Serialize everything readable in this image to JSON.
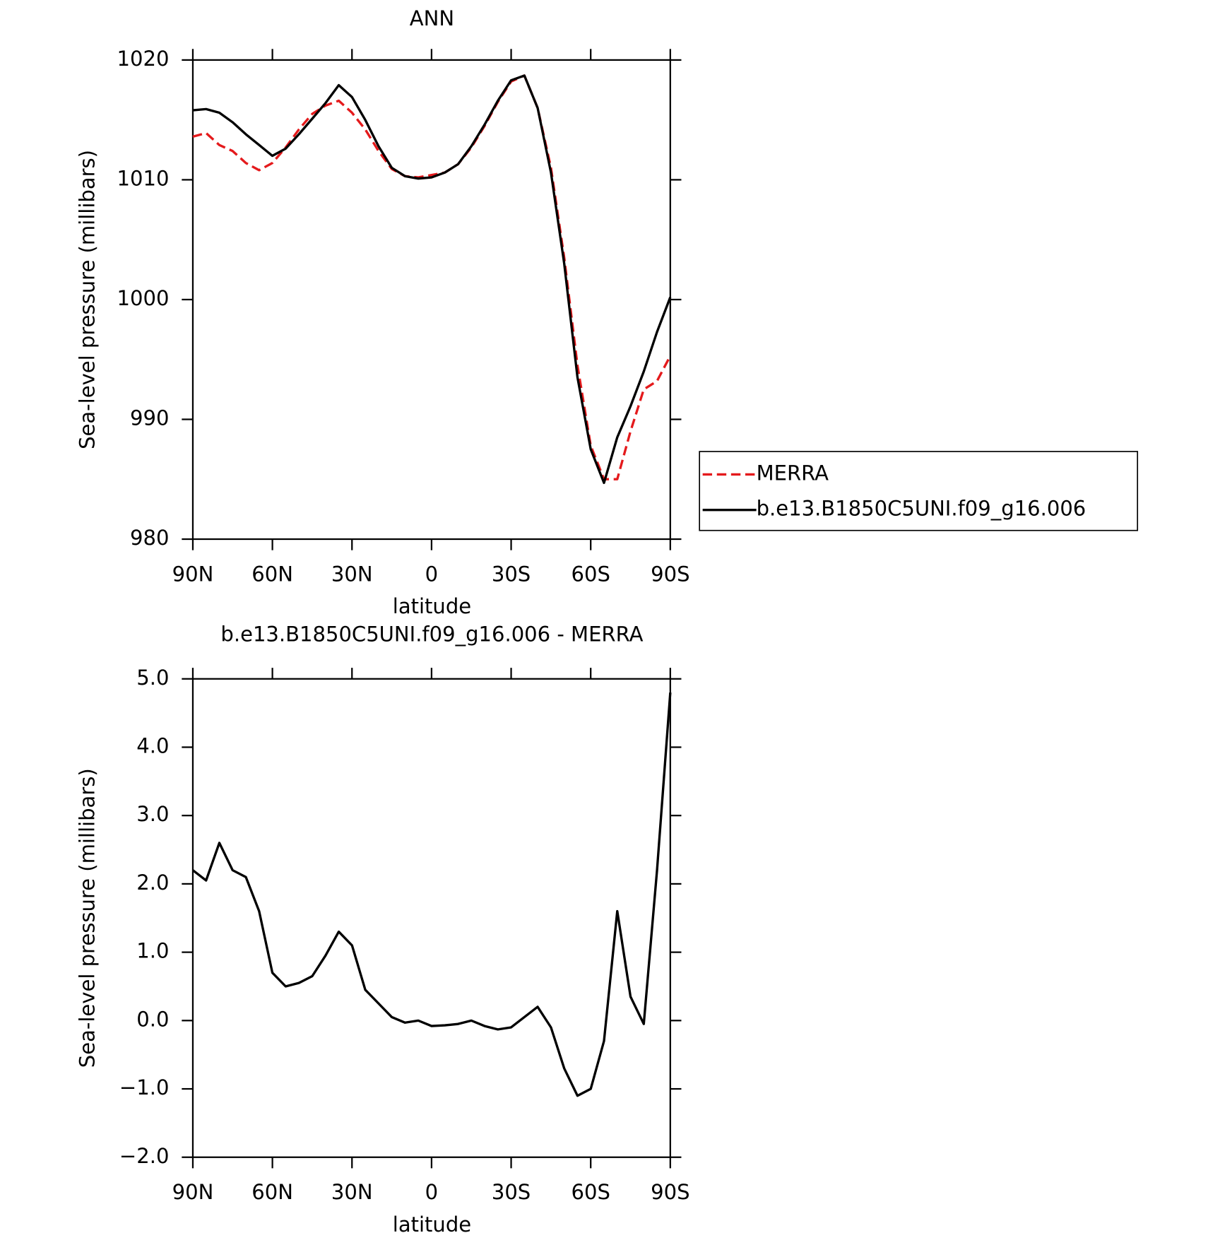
{
  "chart_data": [
    {
      "type": "line",
      "title": "ANN",
      "xlabel": "latitude",
      "ylabel": "Sea-level pressure (millibars)",
      "x": [
        90,
        85,
        80,
        75,
        70,
        65,
        60,
        55,
        50,
        45,
        40,
        35,
        30,
        25,
        20,
        15,
        10,
        5,
        0,
        -5,
        -10,
        -15,
        -20,
        -25,
        -30,
        -35,
        -40,
        -45,
        -50,
        -55,
        -60,
        -65,
        -70,
        -75,
        -80,
        -85,
        -90
      ],
      "series": [
        {
          "name": "MERRA",
          "color": "#e41a1c",
          "style": "dashed",
          "values": [
            1013.6,
            1013.9,
            1012.9,
            1012.4,
            1011.4,
            1010.8,
            1011.4,
            1012.7,
            1014.2,
            1015.5,
            1016.2,
            1016.6,
            1015.6,
            1014.2,
            1012.4,
            1010.9,
            1010.3,
            1010.2,
            1010.4,
            1010.6,
            1011.3,
            1012.7,
            1014.5,
            1016.5,
            1018.2,
            1018.7,
            1016.0,
            1011.0,
            1003.5,
            994.5,
            987.8,
            985.0,
            985.0,
            989.0,
            992.5,
            993.2,
            995.3
          ]
        },
        {
          "name": "b.e13.B1850C5UNI.f09_g16.006",
          "color": "#000000",
          "style": "solid",
          "values": [
            1015.8,
            1015.9,
            1015.6,
            1014.8,
            1013.8,
            1012.9,
            1012.0,
            1012.6,
            1013.8,
            1015.1,
            1016.4,
            1017.9,
            1016.9,
            1015.0,
            1012.8,
            1011.0,
            1010.3,
            1010.1,
            1010.2,
            1010.6,
            1011.3,
            1012.8,
            1014.6,
            1016.6,
            1018.3,
            1018.7,
            1016.0,
            1010.6,
            1003.0,
            993.5,
            987.5,
            984.7,
            988.5,
            991.1,
            994.0,
            997.3,
            1000.2
          ]
        }
      ],
      "xlim": [
        90,
        -90
      ],
      "xticks": [
        {
          "value": 90,
          "label": "90N"
        },
        {
          "value": 60,
          "label": "60N"
        },
        {
          "value": 30,
          "label": "30N"
        },
        0,
        {
          "value": -30,
          "label": "30S"
        },
        {
          "value": -60,
          "label": "60S"
        },
        {
          "value": -90,
          "label": "90S"
        }
      ],
      "ylim": [
        980,
        1020
      ],
      "yticks": [
        980,
        990,
        1000,
        1010,
        1020
      ],
      "legend": "right"
    },
    {
      "type": "line",
      "title": "b.e13.B1850C5UNI.f09_g16.006 - MERRA",
      "xlabel": "latitude",
      "ylabel": "Sea-level pressure (millibars)",
      "x": [
        90,
        85,
        80,
        75,
        70,
        65,
        60,
        55,
        50,
        45,
        40,
        35,
        30,
        25,
        20,
        15,
        10,
        5,
        0,
        -5,
        -10,
        -15,
        -20,
        -25,
        -30,
        -35,
        -40,
        -45,
        -50,
        -55,
        -60,
        -65,
        -70,
        -75,
        -80,
        -85,
        -90
      ],
      "values": [
        2.2,
        2.05,
        2.6,
        2.2,
        2.1,
        1.6,
        0.7,
        0.5,
        0.55,
        0.65,
        0.95,
        1.3,
        1.1,
        0.45,
        0.25,
        0.05,
        -0.03,
        0.0,
        -0.08,
        -0.07,
        -0.05,
        0.0,
        -0.08,
        -0.13,
        -0.1,
        0.05,
        0.2,
        -0.1,
        -0.7,
        -1.1,
        -1.0,
        -0.3,
        1.6,
        0.35,
        -0.05,
        2.2,
        4.8
      ],
      "color": "#000000",
      "style": "solid",
      "xlim": [
        90,
        -90
      ],
      "xticks": [
        {
          "value": 90,
          "label": "90N"
        },
        {
          "value": 60,
          "label": "60N"
        },
        {
          "value": 30,
          "label": "30N"
        },
        0,
        {
          "value": -30,
          "label": "30S"
        },
        {
          "value": -60,
          "label": "60S"
        },
        {
          "value": -90,
          "label": "90S"
        }
      ],
      "ylim": [
        -2,
        5
      ],
      "yticks": [
        {
          "value": -2,
          "label": "−2.0"
        },
        {
          "value": -1,
          "label": "−1.0"
        },
        {
          "value": 0,
          "label": "0.0"
        },
        {
          "value": 1,
          "label": "1.0"
        },
        {
          "value": 2,
          "label": "2.0"
        },
        {
          "value": 3,
          "label": "3.0"
        },
        {
          "value": 4,
          "label": "4.0"
        },
        {
          "value": 5,
          "label": "5.0"
        }
      ]
    }
  ]
}
